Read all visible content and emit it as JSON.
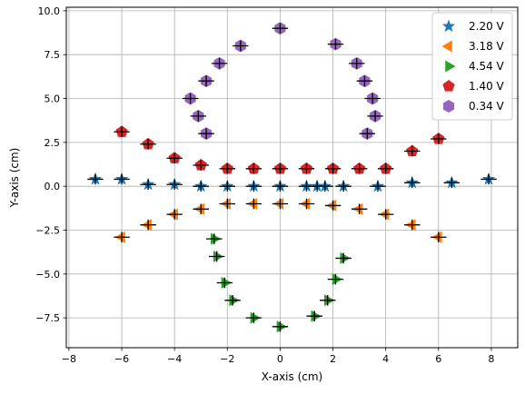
{
  "chart_data": {
    "type": "scatter",
    "xlabel": "X-axis (cm)",
    "ylabel": "Y-axis (cm)",
    "xlim": [
      -8.1,
      9.0
    ],
    "ylim": [
      -9.2,
      10.2
    ],
    "xticks": [
      -8,
      -6,
      -4,
      -2,
      0,
      2,
      4,
      6,
      8
    ],
    "xtick_labels": [
      "−8",
      "−6",
      "−4",
      "−2",
      "0",
      "2",
      "4",
      "6",
      "8"
    ],
    "yticks": [
      -7.5,
      -5.0,
      -2.5,
      0.0,
      2.5,
      5.0,
      7.5,
      10.0
    ],
    "ytick_labels": [
      "−7.5",
      "−5.0",
      "−2.5",
      "0.0",
      "2.5",
      "5.0",
      "7.5",
      "10.0"
    ],
    "grid": true,
    "legend_position": "top-right",
    "error_bar_color": "#000000",
    "error_bar_half_width": 0.3,
    "series": [
      {
        "name": "2.20 V",
        "marker": "star",
        "color": "#1f77b4",
        "points": [
          [
            -7.0,
            0.4
          ],
          [
            -6.0,
            0.4
          ],
          [
            -5.0,
            0.1
          ],
          [
            -4.0,
            0.1
          ],
          [
            -3.0,
            0.0
          ],
          [
            -2.0,
            0.0
          ],
          [
            -1.0,
            0.0
          ],
          [
            0.0,
            0.0
          ],
          [
            1.0,
            0.0
          ],
          [
            1.4,
            0.0
          ],
          [
            1.7,
            0.0
          ],
          [
            2.4,
            0.0
          ],
          [
            3.7,
            0.0
          ],
          [
            5.0,
            0.2
          ],
          [
            6.5,
            0.2
          ],
          [
            7.9,
            0.4
          ]
        ]
      },
      {
        "name": "3.18 V",
        "marker": "triangle-left",
        "color": "#ff7f0e",
        "points": [
          [
            -6.0,
            -2.9
          ],
          [
            -5.0,
            -2.2
          ],
          [
            -4.0,
            -1.6
          ],
          [
            -3.0,
            -1.3
          ],
          [
            -2.0,
            -1.0
          ],
          [
            -1.0,
            -1.0
          ],
          [
            0.0,
            -1.0
          ],
          [
            1.0,
            -1.0
          ],
          [
            2.0,
            -1.1
          ],
          [
            3.0,
            -1.3
          ],
          [
            4.0,
            -1.6
          ],
          [
            5.0,
            -2.2
          ],
          [
            6.0,
            -2.9
          ]
        ]
      },
      {
        "name": "4.54 V",
        "marker": "triangle-right",
        "color": "#2ca02c",
        "points": [
          [
            -2.5,
            -3.0
          ],
          [
            -2.4,
            -4.0
          ],
          [
            -2.1,
            -5.5
          ],
          [
            -1.8,
            -6.5
          ],
          [
            -1.0,
            -7.5
          ],
          [
            0.0,
            -8.0
          ],
          [
            1.3,
            -7.4
          ],
          [
            1.8,
            -6.5
          ],
          [
            2.1,
            -5.3
          ],
          [
            2.4,
            -4.1
          ]
        ]
      },
      {
        "name": "1.40 V",
        "marker": "pentagon",
        "color": "#d62728",
        "points": [
          [
            -6.0,
            3.1
          ],
          [
            -5.0,
            2.4
          ],
          [
            -4.0,
            1.6
          ],
          [
            -3.0,
            1.2
          ],
          [
            -2.0,
            1.0
          ],
          [
            -1.0,
            1.0
          ],
          [
            0.0,
            1.0
          ],
          [
            1.0,
            1.0
          ],
          [
            2.0,
            1.0
          ],
          [
            3.0,
            1.0
          ],
          [
            4.0,
            1.0
          ],
          [
            5.0,
            2.0
          ],
          [
            6.0,
            2.7
          ]
        ]
      },
      {
        "name": "0.34 V",
        "marker": "hexagon",
        "color": "#9467bd",
        "points": [
          [
            0.0,
            9.0
          ],
          [
            2.1,
            8.1
          ],
          [
            -1.5,
            8.0
          ],
          [
            -2.3,
            7.0
          ],
          [
            2.9,
            7.0
          ],
          [
            -2.8,
            6.0
          ],
          [
            3.2,
            6.0
          ],
          [
            -3.4,
            5.0
          ],
          [
            3.5,
            5.0
          ],
          [
            -3.1,
            4.0
          ],
          [
            3.6,
            4.0
          ],
          [
            -2.8,
            3.0
          ],
          [
            3.3,
            3.0
          ]
        ]
      }
    ]
  }
}
